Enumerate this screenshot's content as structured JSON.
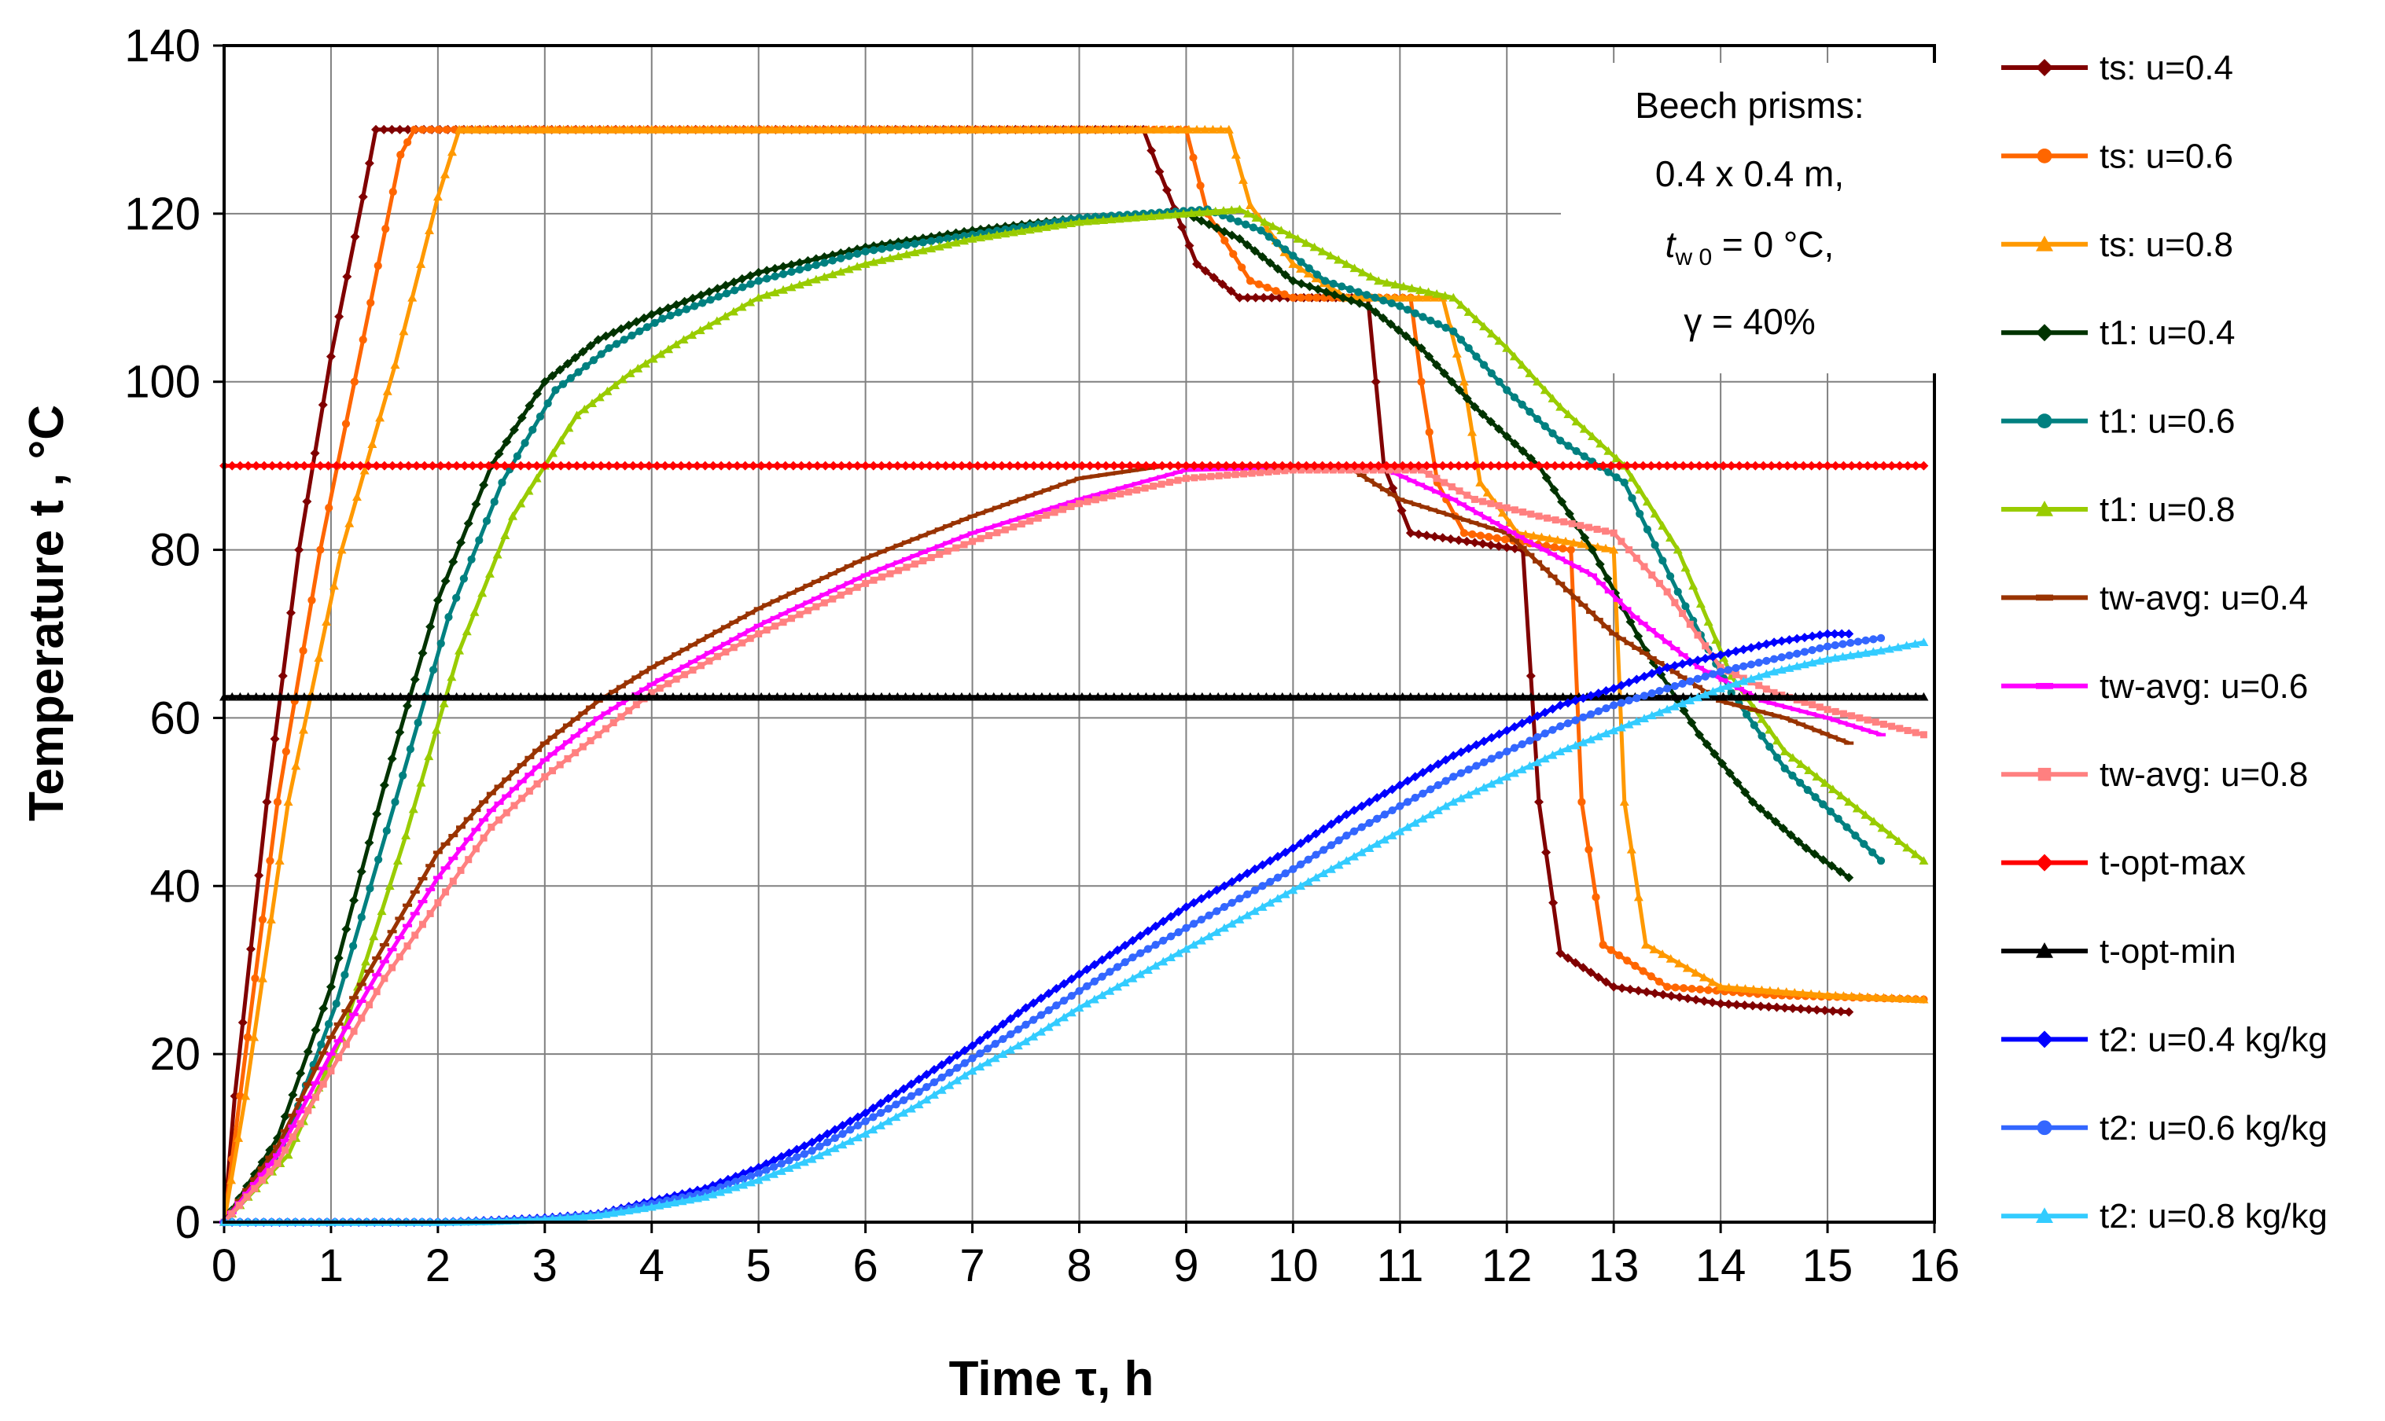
{
  "chart_data": {
    "type": "line",
    "title": "",
    "xlabel": "Time τ, h",
    "ylabel": "Temperature t , °C",
    "xlim": [
      0,
      16
    ],
    "ylim": [
      0,
      140
    ],
    "x_ticks": [
      "0",
      "1",
      "2",
      "3",
      "4",
      "5",
      "6",
      "7",
      "8",
      "9",
      "10",
      "11",
      "12",
      "13",
      "14",
      "15",
      "16"
    ],
    "y_ticks": [
      "0",
      "20",
      "40",
      "60",
      "80",
      "100",
      "120",
      "140"
    ],
    "grid": true,
    "legend_position": "right",
    "annotation": {
      "line1": "Beech prisms:",
      "line2": "0.4 x 0.4 m,",
      "line3_var": "t",
      "line3_sub": "w 0",
      "line3_rest": " = 0 °C,",
      "line4": "γ = 40%"
    },
    "series": [
      {
        "name": "ts:  u=0.4",
        "color": "#800000",
        "marker": "diamond",
        "points": [
          [
            0,
            0
          ],
          [
            0.1,
            15
          ],
          [
            0.4,
            50
          ],
          [
            0.7,
            80
          ],
          [
            1.0,
            103
          ],
          [
            1.3,
            122
          ],
          [
            1.42,
            130
          ],
          [
            8.6,
            130
          ],
          [
            8.75,
            125
          ],
          [
            9.1,
            114
          ],
          [
            9.5,
            110
          ],
          [
            10.7,
            110
          ],
          [
            10.85,
            90
          ],
          [
            11.1,
            82
          ],
          [
            12.15,
            80
          ],
          [
            12.3,
            50
          ],
          [
            12.5,
            32
          ],
          [
            13,
            28
          ],
          [
            14,
            26
          ],
          [
            15.2,
            25
          ]
        ]
      },
      {
        "name": "ts:  u=0.6",
        "color": "#FF6600",
        "marker": "circle",
        "points": [
          [
            0,
            0
          ],
          [
            0.15,
            15
          ],
          [
            0.5,
            50
          ],
          [
            0.9,
            80
          ],
          [
            1.3,
            105
          ],
          [
            1.65,
            127
          ],
          [
            1.78,
            130
          ],
          [
            9.0,
            130
          ],
          [
            9.2,
            120
          ],
          [
            9.6,
            112
          ],
          [
            10,
            110
          ],
          [
            11.1,
            110
          ],
          [
            11.2,
            100
          ],
          [
            11.35,
            88
          ],
          [
            11.6,
            82
          ],
          [
            12.6,
            80
          ],
          [
            12.7,
            50
          ],
          [
            12.9,
            33
          ],
          [
            13.5,
            28
          ],
          [
            14.5,
            27
          ],
          [
            15.9,
            26.5
          ]
        ]
      },
      {
        "name": "ts:  u=0.8",
        "color": "#FF9900",
        "marker": "triangle",
        "points": [
          [
            0,
            0
          ],
          [
            0.2,
            15
          ],
          [
            0.6,
            50
          ],
          [
            1.1,
            80
          ],
          [
            1.6,
            102
          ],
          [
            2.0,
            122
          ],
          [
            2.2,
            130
          ],
          [
            9.4,
            130
          ],
          [
            9.6,
            121
          ],
          [
            10.0,
            114
          ],
          [
            10.5,
            110
          ],
          [
            11.4,
            110
          ],
          [
            11.6,
            100
          ],
          [
            11.75,
            88
          ],
          [
            12.1,
            82
          ],
          [
            13.0,
            80
          ],
          [
            13.1,
            50
          ],
          [
            13.3,
            33
          ],
          [
            14,
            28
          ],
          [
            15,
            27
          ],
          [
            15.9,
            26.5
          ]
        ]
      },
      {
        "name": "t1: u=0.4",
        "color": "#003300",
        "marker": "diamond",
        "points": [
          [
            0,
            0
          ],
          [
            0.5,
            10
          ],
          [
            1,
            28
          ],
          [
            1.5,
            52
          ],
          [
            2,
            74
          ],
          [
            2.5,
            90
          ],
          [
            3,
            100
          ],
          [
            3.5,
            105
          ],
          [
            4,
            108
          ],
          [
            5,
            113
          ],
          [
            6,
            116
          ],
          [
            7,
            118
          ],
          [
            8,
            119.5
          ],
          [
            9,
            120
          ],
          [
            9.5,
            117
          ],
          [
            10,
            112
          ],
          [
            10.7,
            109
          ],
          [
            11.2,
            104
          ],
          [
            11.7,
            97
          ],
          [
            12.3,
            90
          ],
          [
            12.8,
            80
          ],
          [
            13.3,
            68
          ],
          [
            13.8,
            58
          ],
          [
            14.3,
            50
          ],
          [
            14.8,
            44.5
          ],
          [
            15.2,
            41
          ]
        ]
      },
      {
        "name": "t1: u=0.6",
        "color": "#008080",
        "marker": "circle",
        "points": [
          [
            0,
            0
          ],
          [
            0.55,
            9
          ],
          [
            1.05,
            26
          ],
          [
            1.6,
            50
          ],
          [
            2.1,
            72
          ],
          [
            2.6,
            88
          ],
          [
            3.1,
            99
          ],
          [
            3.6,
            104
          ],
          [
            4.1,
            107.5
          ],
          [
            5,
            112
          ],
          [
            6,
            115.5
          ],
          [
            7,
            117.5
          ],
          [
            8,
            119.5
          ],
          [
            9.2,
            120.5
          ],
          [
            9.7,
            118
          ],
          [
            10.3,
            112
          ],
          [
            11,
            109
          ],
          [
            11.5,
            106
          ],
          [
            12,
            99
          ],
          [
            12.5,
            93
          ],
          [
            13.1,
            88
          ],
          [
            13.6,
            75
          ],
          [
            14.1,
            63
          ],
          [
            14.6,
            54
          ],
          [
            15.1,
            48
          ],
          [
            15.5,
            43
          ]
        ]
      },
      {
        "name": "t1: u=0.8",
        "color": "#99CC00",
        "marker": "triangle",
        "points": [
          [
            0,
            0
          ],
          [
            0.6,
            8
          ],
          [
            1.1,
            22
          ],
          [
            1.7,
            46
          ],
          [
            2.2,
            68
          ],
          [
            2.7,
            84
          ],
          [
            3.3,
            96
          ],
          [
            3.8,
            101
          ],
          [
            4.3,
            105
          ],
          [
            5,
            110
          ],
          [
            6,
            114
          ],
          [
            7,
            117
          ],
          [
            8,
            119
          ],
          [
            9.5,
            120.5
          ],
          [
            10.2,
            116
          ],
          [
            10.8,
            112
          ],
          [
            11.5,
            110
          ],
          [
            12,
            104
          ],
          [
            12.5,
            97
          ],
          [
            13.1,
            90
          ],
          [
            13.6,
            80
          ],
          [
            14.1,
            65
          ],
          [
            14.6,
            56
          ],
          [
            15.2,
            50
          ],
          [
            15.9,
            43
          ]
        ]
      },
      {
        "name": "tw-avg: u=0.4",
        "color": "#993300",
        "marker": "dash",
        "points": [
          [
            0,
            0
          ],
          [
            0.5,
            9
          ],
          [
            1,
            22
          ],
          [
            1.5,
            33
          ],
          [
            2,
            44
          ],
          [
            2.5,
            51
          ],
          [
            3,
            57
          ],
          [
            3.5,
            62
          ],
          [
            4,
            66
          ],
          [
            5,
            73
          ],
          [
            6,
            79
          ],
          [
            7,
            84
          ],
          [
            8,
            88.5
          ],
          [
            8.8,
            90
          ],
          [
            10.5,
            90
          ],
          [
            11,
            86
          ],
          [
            12,
            82
          ],
          [
            12.5,
            76
          ],
          [
            13,
            70
          ],
          [
            13.5,
            66
          ],
          [
            14,
            62
          ],
          [
            14.6,
            60
          ],
          [
            15.2,
            57
          ]
        ]
      },
      {
        "name": "tw-avg: u=0.6",
        "color": "#FF00FF",
        "marker": "dash",
        "points": [
          [
            0,
            0
          ],
          [
            0.5,
            8
          ],
          [
            1,
            20
          ],
          [
            1.5,
            31
          ],
          [
            2,
            41
          ],
          [
            2.5,
            49
          ],
          [
            3,
            55
          ],
          [
            3.5,
            60
          ],
          [
            4,
            64
          ],
          [
            5,
            71
          ],
          [
            6,
            77
          ],
          [
            7,
            82
          ],
          [
            8,
            86
          ],
          [
            9,
            89.5
          ],
          [
            10.8,
            90
          ],
          [
            11.5,
            86
          ],
          [
            12.2,
            81
          ],
          [
            12.8,
            77
          ],
          [
            13.2,
            72
          ],
          [
            13.8,
            66
          ],
          [
            14.4,
            62
          ],
          [
            15,
            60
          ],
          [
            15.5,
            58
          ]
        ]
      },
      {
        "name": "tw-avg: u=0.8",
        "color": "#FF8080",
        "marker": "square",
        "points": [
          [
            0,
            0
          ],
          [
            0.5,
            7
          ],
          [
            1,
            18
          ],
          [
            1.5,
            29
          ],
          [
            2,
            38
          ],
          [
            2.5,
            47
          ],
          [
            3,
            53
          ],
          [
            3.5,
            58
          ],
          [
            4,
            63
          ],
          [
            5,
            70
          ],
          [
            6,
            76
          ],
          [
            7,
            81
          ],
          [
            8,
            85.5
          ],
          [
            9,
            88.5
          ],
          [
            10,
            89.5
          ],
          [
            11.2,
            89.5
          ],
          [
            11.7,
            86
          ],
          [
            12.3,
            84
          ],
          [
            13,
            82
          ],
          [
            13.5,
            75
          ],
          [
            14,
            66
          ],
          [
            14.5,
            63
          ],
          [
            15,
            61
          ],
          [
            15.9,
            58
          ]
        ]
      },
      {
        "name": "t-opt-max",
        "color": "#FF0000",
        "marker": "diamond",
        "points": [
          [
            0,
            90
          ],
          [
            15.9,
            90
          ]
        ]
      },
      {
        "name": "t-opt-min",
        "color": "#000000",
        "marker": "triangle",
        "points": [
          [
            0,
            62.5
          ],
          [
            15.9,
            62.5
          ]
        ]
      },
      {
        "name": "t2: u=0.4 kg/kg",
        "color": "#0000FF",
        "marker": "diamond",
        "points": [
          [
            0,
            0
          ],
          [
            2,
            0
          ],
          [
            2.5,
            0.2
          ],
          [
            3,
            0.5
          ],
          [
            3.5,
            1
          ],
          [
            4,
            2.5
          ],
          [
            4.5,
            4
          ],
          [
            5,
            6.5
          ],
          [
            5.5,
            9.5
          ],
          [
            6,
            13
          ],
          [
            6.5,
            17
          ],
          [
            7,
            21
          ],
          [
            7.5,
            25.5
          ],
          [
            8,
            29.5
          ],
          [
            8.5,
            33.5
          ],
          [
            9,
            37.5
          ],
          [
            9.5,
            41
          ],
          [
            10,
            44.5
          ],
          [
            10.5,
            48.5
          ],
          [
            11,
            52
          ],
          [
            11.5,
            55.5
          ],
          [
            12,
            58.5
          ],
          [
            12.5,
            61.5
          ],
          [
            13,
            63.5
          ],
          [
            13.5,
            66
          ],
          [
            14,
            67.5
          ],
          [
            14.5,
            69
          ],
          [
            15,
            70
          ],
          [
            15.2,
            70
          ]
        ]
      },
      {
        "name": "t2: u=0.6 kg/kg",
        "color": "#3366FF",
        "marker": "circle",
        "points": [
          [
            0,
            0
          ],
          [
            2,
            0
          ],
          [
            2.5,
            0.1
          ],
          [
            3,
            0.4
          ],
          [
            3.5,
            0.9
          ],
          [
            4,
            2.2
          ],
          [
            4.5,
            3.5
          ],
          [
            5,
            5.8
          ],
          [
            5.5,
            8.5
          ],
          [
            6,
            12
          ],
          [
            6.5,
            15.5
          ],
          [
            7,
            19.5
          ],
          [
            7.5,
            23.5
          ],
          [
            8,
            27.5
          ],
          [
            8.5,
            31.5
          ],
          [
            9,
            35
          ],
          [
            9.5,
            38.5
          ],
          [
            10,
            42
          ],
          [
            10.5,
            46
          ],
          [
            11,
            49.5
          ],
          [
            11.5,
            53
          ],
          [
            12,
            56
          ],
          [
            12.5,
            59
          ],
          [
            13,
            61.5
          ],
          [
            13.5,
            63.5
          ],
          [
            14,
            65.5
          ],
          [
            14.5,
            67
          ],
          [
            15,
            68.5
          ],
          [
            15.5,
            69.5
          ]
        ]
      },
      {
        "name": "t2: u=0.8 kg/kg",
        "color": "#33CCFF",
        "marker": "triangle",
        "points": [
          [
            0,
            0
          ],
          [
            2,
            0
          ],
          [
            2.5,
            0.1
          ],
          [
            3,
            0.3
          ],
          [
            3.5,
            0.8
          ],
          [
            4,
            1.8
          ],
          [
            4.5,
            3
          ],
          [
            5,
            5
          ],
          [
            5.5,
            7.5
          ],
          [
            6,
            10.5
          ],
          [
            6.5,
            14
          ],
          [
            7,
            18
          ],
          [
            7.5,
            21.5
          ],
          [
            8,
            25.5
          ],
          [
            8.5,
            29
          ],
          [
            9,
            32.5
          ],
          [
            9.5,
            36
          ],
          [
            10,
            39.5
          ],
          [
            10.5,
            43
          ],
          [
            11,
            46.5
          ],
          [
            11.5,
            50
          ],
          [
            12,
            53
          ],
          [
            12.5,
            56
          ],
          [
            13,
            58.5
          ],
          [
            13.5,
            61
          ],
          [
            14,
            63.5
          ],
          [
            14.5,
            65.5
          ],
          [
            15,
            67
          ],
          [
            15.5,
            68
          ],
          [
            15.9,
            69
          ]
        ]
      }
    ]
  }
}
